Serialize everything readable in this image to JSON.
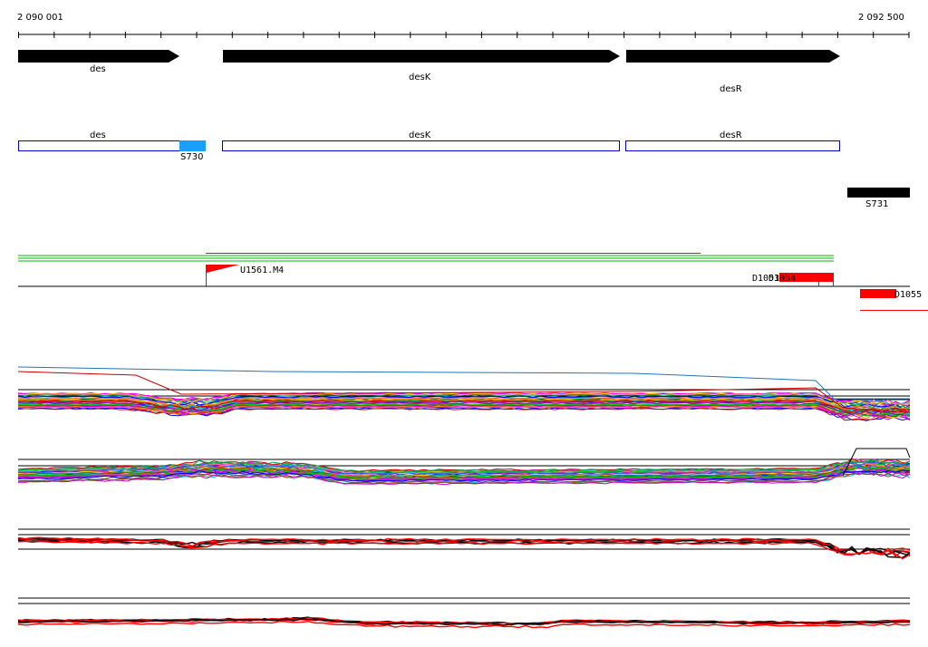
{
  "ruler": {
    "start_label": "2 090 001",
    "end_label": "2 092 500"
  },
  "genes": [
    {
      "label": "des"
    },
    {
      "label": "desK"
    },
    {
      "label": "desR"
    }
  ],
  "annotations": [
    {
      "label": "des"
    },
    {
      "label": "desK"
    },
    {
      "label": "desR"
    }
  ],
  "features": {
    "s730": "S730",
    "s731": "S731",
    "u1561": "U1561.M4",
    "d1053": "D1053",
    "d1054": "D1054",
    "d1055": "D1055"
  },
  "colors": {
    "arrow": "#000000",
    "annotation_box": "#0000cc",
    "s730_fill": "#1a9fff",
    "feature_red": "#ff0000",
    "green_track": "#33cc33",
    "blue_trace": "#1f77b4"
  }
}
